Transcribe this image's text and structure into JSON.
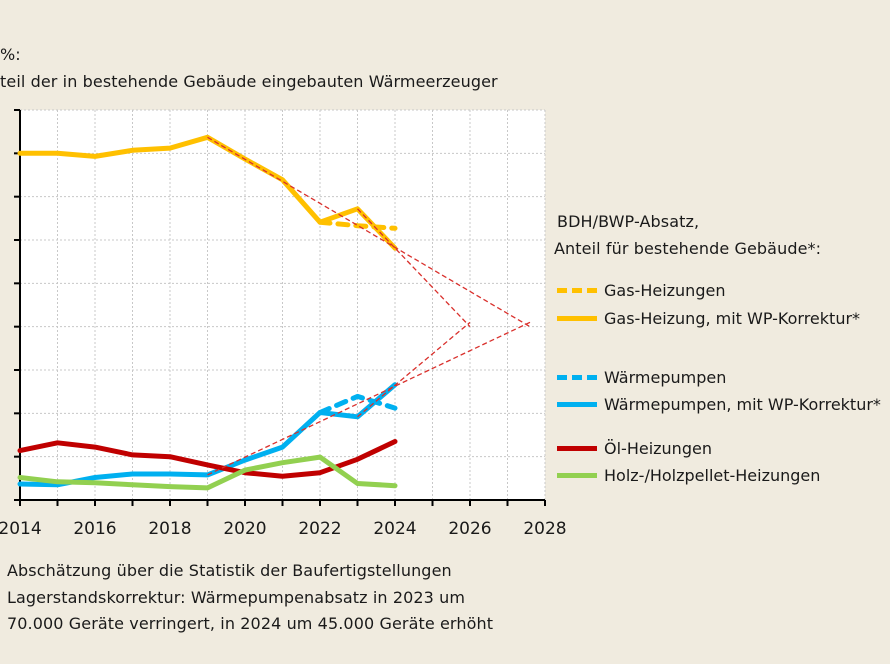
{
  "title": {
    "unit_line": "%:",
    "subtitle_line": "teil der in bestehende  Gebäude eingebauten  Wärmeerzeuger"
  },
  "legend": {
    "header_line1": "BDH/BWP-Absatz,",
    "header_line2": " Anteil für bestehende  Gebäude*:"
  },
  "footnotes": [
    "Abschätzung über die Statistik der Baufertigstellungen",
    "Lagerstandskorrektur:  Wärmepumpenabsatz  in 2023 um",
    "70.000 Geräte verringert,  in 2024 um 45.000 Geräte erhöht"
  ],
  "chart_data": {
    "type": "line",
    "xlim": [
      2014,
      2028
    ],
    "ylim": [
      0,
      90
    ],
    "x_ticks": [
      "2014",
      "2016",
      "2018",
      "2020",
      "2022",
      "2024",
      "2026",
      "2028"
    ],
    "ylabel": "%",
    "grid": true,
    "legend_placement": "right",
    "series": [
      {
        "name": "Gas-Heizungen",
        "color": "#ffc000",
        "style": "dashed",
        "x": [
          2022,
          2023,
          2024
        ],
        "y": [
          64.1,
          63.3,
          62.7
        ]
      },
      {
        "name": "Gas-Heizung, mit WP-Korrektur*",
        "color": "#ffc000",
        "style": "solid",
        "x": [
          2014,
          2015,
          2016,
          2017,
          2018,
          2019,
          2020,
          2021,
          2022,
          2023,
          2024
        ],
        "y": [
          80.0,
          80.0,
          79.3,
          80.7,
          81.2,
          83.7,
          78.7,
          73.9,
          64.1,
          67.2,
          58.1
        ]
      },
      {
        "name": "Wärmepumpen",
        "color": "#00b0f0",
        "style": "dashed",
        "x": [
          2022,
          2023,
          2024
        ],
        "y": [
          20.2,
          23.9,
          21.2
        ]
      },
      {
        "name": "Wärmepumpen, mit WP-Korrektur*",
        "color": "#00b0f0",
        "style": "solid",
        "x": [
          2014,
          2015,
          2016,
          2017,
          2018,
          2019,
          2020,
          2021,
          2022,
          2023,
          2024
        ],
        "y": [
          3.7,
          3.5,
          5.2,
          6.0,
          6.0,
          5.8,
          9.2,
          12.2,
          20.2,
          19.2,
          26.6
        ]
      },
      {
        "name": "Öl-Heizungen",
        "color": "#c00000",
        "style": "solid",
        "x": [
          2014,
          2015,
          2016,
          2017,
          2018,
          2019,
          2020,
          2021,
          2022,
          2023,
          2024
        ],
        "y": [
          11.4,
          13.2,
          12.2,
          10.4,
          10.0,
          8.1,
          6.3,
          5.5,
          6.3,
          9.4,
          13.5
        ]
      },
      {
        "name": "Holz-/Holzpellet-Heizungen",
        "color": "#92d050",
        "style": "solid",
        "x": [
          2014,
          2015,
          2016,
          2017,
          2018,
          2019,
          2020,
          2021,
          2022,
          2023,
          2024
        ],
        "y": [
          5.2,
          4.2,
          4.0,
          3.5,
          3.1,
          2.8,
          6.9,
          8.6,
          9.9,
          3.8,
          3.3
        ]
      }
    ],
    "trend_lines": {
      "color": "#d9302c",
      "lines": [
        {
          "x": [
            2019,
            2027.6
          ],
          "y": [
            83.7,
            40.0
          ]
        },
        {
          "x": [
            2023,
            2026.0
          ],
          "y": [
            67.2,
            40.0
          ]
        },
        {
          "x": [
            2019,
            2027.6
          ],
          "y": [
            5.8,
            41.0
          ]
        },
        {
          "x": [
            2023,
            2026.0
          ],
          "y": [
            19.2,
            41.0
          ]
        }
      ]
    }
  }
}
